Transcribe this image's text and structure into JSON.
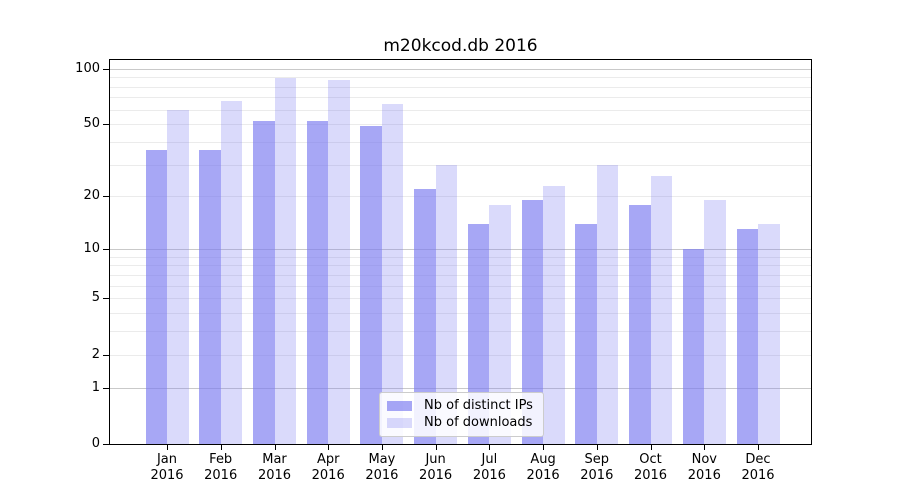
{
  "chart_data": {
    "type": "bar",
    "title": "m20kcod.db 2016",
    "categories": [
      "Jan",
      "Feb",
      "Mar",
      "Apr",
      "May",
      "Jun",
      "Jul",
      "Aug",
      "Sep",
      "Oct",
      "Nov",
      "Dec"
    ],
    "x_year_label": "2016",
    "series": [
      {
        "name": "Nb of distinct IPs",
        "color": "rgba(122,122,240,0.66)",
        "values": [
          36,
          36,
          52,
          52,
          49,
          22,
          14,
          19,
          14,
          18,
          10,
          13
        ]
      },
      {
        "name": "Nb of downloads",
        "color": "rgba(122,122,240,0.28)",
        "values": [
          60,
          67,
          89,
          87,
          64,
          30,
          18,
          23,
          30,
          26,
          19,
          14
        ]
      }
    ],
    "yscale": "log(1+x)",
    "yticks": [
      0,
      1,
      2,
      5,
      10,
      20,
      50,
      100
    ],
    "minor_grid_values": [
      3,
      4,
      6,
      7,
      8,
      9,
      30,
      40,
      60,
      70,
      80,
      90
    ],
    "major_grid_values": [
      1,
      10,
      100
    ],
    "ylim": [
      0,
      110
    ],
    "grid": true,
    "legend_position": "lower center"
  }
}
